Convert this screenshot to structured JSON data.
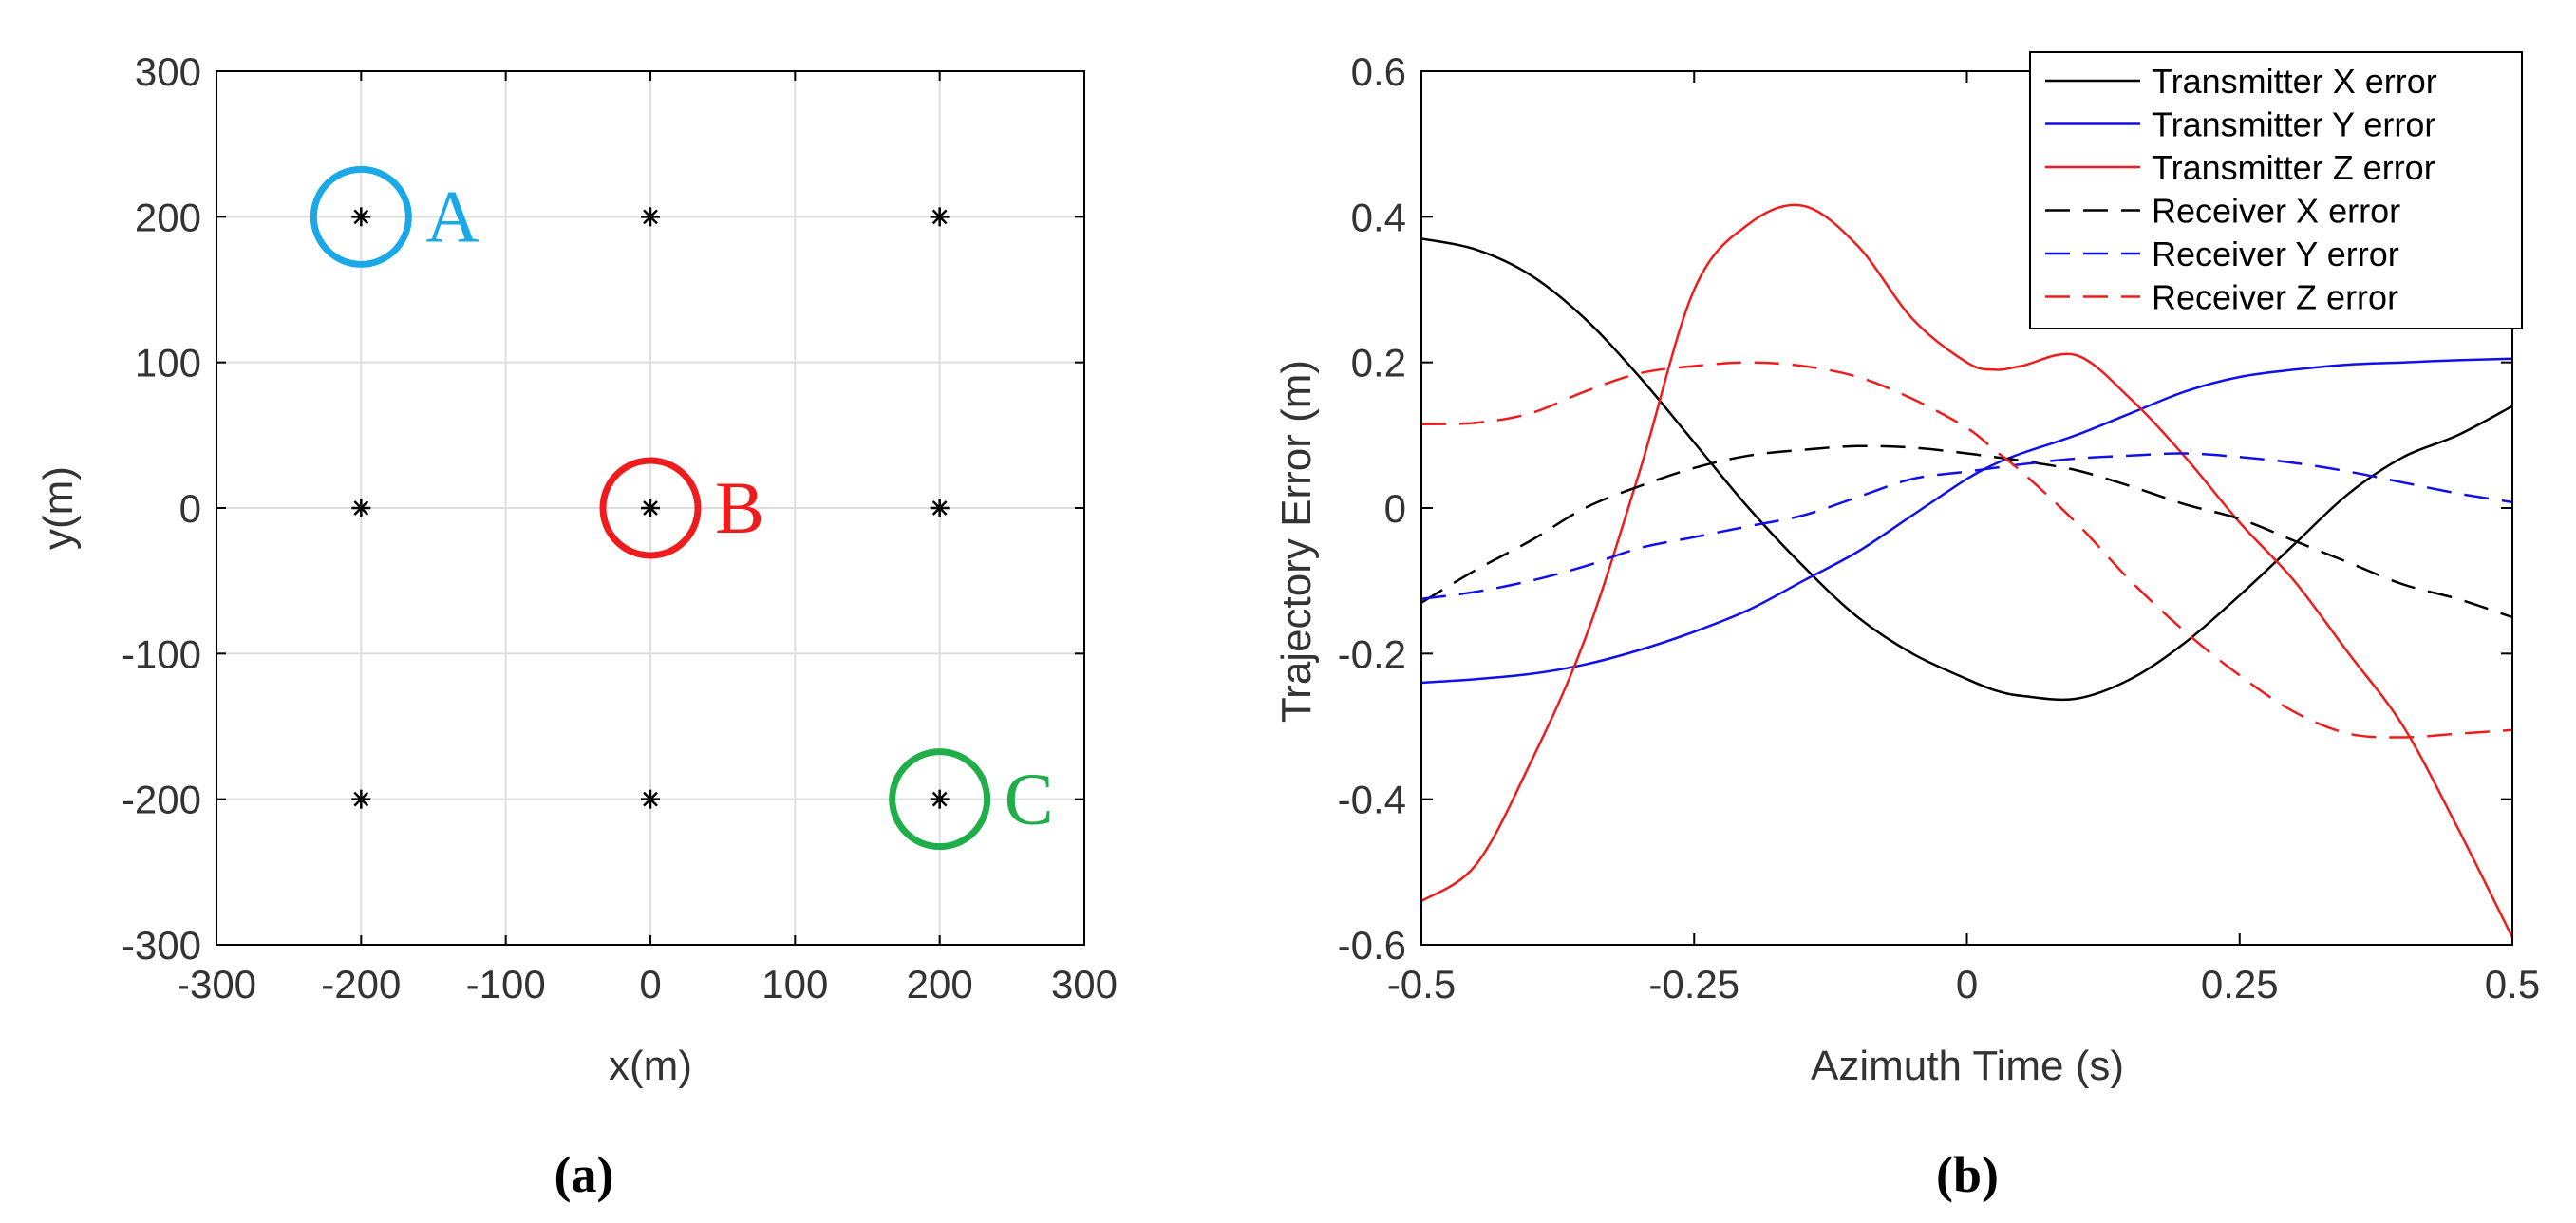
{
  "chart_data": [
    {
      "type": "scatter",
      "panel_label": "(a)",
      "xlabel": "x(m)",
      "ylabel": "y(m)",
      "xlim": [
        -300,
        300
      ],
      "ylim": [
        -300,
        300
      ],
      "xticks": [
        -300,
        -200,
        -100,
        0,
        100,
        200,
        300
      ],
      "yticks": [
        -300,
        -200,
        -100,
        0,
        100,
        200,
        300
      ],
      "grid": true,
      "points": [
        {
          "x": -200,
          "y": 200
        },
        {
          "x": 0,
          "y": 200
        },
        {
          "x": 200,
          "y": 200
        },
        {
          "x": -200,
          "y": 0
        },
        {
          "x": 0,
          "y": 0
        },
        {
          "x": 200,
          "y": 0
        },
        {
          "x": -200,
          "y": -200
        },
        {
          "x": 0,
          "y": -200
        },
        {
          "x": 200,
          "y": -200
        }
      ],
      "marker_color": "#000000",
      "highlights": [
        {
          "label": "A",
          "x": -200,
          "y": 200,
          "color": "#1aa9e6"
        },
        {
          "label": "B",
          "x": 0,
          "y": 0,
          "color": "#ee1c1c"
        },
        {
          "label": "C",
          "x": 200,
          "y": -200,
          "color": "#1fae4a"
        }
      ]
    },
    {
      "type": "line",
      "panel_label": "(b)",
      "xlabel": "Azimuth Time (s)",
      "ylabel": "Trajectory Error (m)",
      "xlim": [
        -0.5,
        0.5
      ],
      "ylim": [
        -0.6,
        0.6
      ],
      "xticks": [
        -0.5,
        -0.25,
        0,
        0.25,
        0.5
      ],
      "xtick_labels": [
        "-0.5",
        "-0.25",
        "0",
        "0.25",
        "0.5"
      ],
      "yticks": [
        -0.6,
        -0.4,
        -0.2,
        0,
        0.2,
        0.4,
        0.6
      ],
      "ytick_labels": [
        "-0.6",
        "-0.4",
        "-0.2",
        "0",
        "0.2",
        "0.4",
        "0.6"
      ],
      "grid": false,
      "legend_position": "top-right",
      "x": [
        -0.5,
        -0.45,
        -0.4,
        -0.35,
        -0.3,
        -0.25,
        -0.2,
        -0.15,
        -0.1,
        -0.05,
        0,
        0.025,
        0.05,
        0.1,
        0.15,
        0.2,
        0.25,
        0.3,
        0.35,
        0.4,
        0.45,
        0.5
      ],
      "series": [
        {
          "name": "Transmitter X error",
          "color": "#000000",
          "dash": "solid",
          "values": [
            0.37,
            0.355,
            0.32,
            0.26,
            0.18,
            0.09,
            0.0,
            -0.08,
            -0.15,
            -0.2,
            -0.235,
            -0.25,
            -0.258,
            -0.262,
            -0.235,
            -0.185,
            -0.12,
            -0.05,
            0.02,
            0.07,
            0.1,
            0.14
          ]
        },
        {
          "name": "Transmitter Y error",
          "color": "#1010ee",
          "dash": "solid",
          "values": [
            -0.24,
            -0.235,
            -0.228,
            -0.215,
            -0.195,
            -0.17,
            -0.14,
            -0.1,
            -0.06,
            -0.01,
            0.04,
            0.06,
            0.075,
            0.1,
            0.13,
            0.16,
            0.18,
            0.19,
            0.197,
            0.2,
            0.203,
            0.205
          ]
        },
        {
          "name": "Transmitter Z error",
          "color": "#ee1c1c",
          "dash": "solid",
          "values": [
            -0.54,
            -0.49,
            -0.35,
            -0.18,
            0.05,
            0.3,
            0.39,
            0.415,
            0.36,
            0.26,
            0.2,
            0.19,
            0.195,
            0.21,
            0.15,
            0.07,
            -0.02,
            -0.1,
            -0.2,
            -0.3,
            -0.44,
            -0.59
          ]
        },
        {
          "name": "Receiver X error",
          "color": "#000000",
          "dash": "dashed",
          "values": [
            -0.13,
            -0.085,
            -0.045,
            0.0,
            0.03,
            0.055,
            0.072,
            0.08,
            0.085,
            0.083,
            0.075,
            0.07,
            0.065,
            0.052,
            0.03,
            0.005,
            -0.015,
            -0.045,
            -0.075,
            -0.105,
            -0.125,
            -0.15
          ]
        },
        {
          "name": "Receiver Y error",
          "color": "#1010ee",
          "dash": "dashed",
          "values": [
            -0.125,
            -0.115,
            -0.1,
            -0.08,
            -0.055,
            -0.04,
            -0.025,
            -0.01,
            0.015,
            0.04,
            0.05,
            0.055,
            0.06,
            0.068,
            0.072,
            0.075,
            0.07,
            0.062,
            0.05,
            0.035,
            0.02,
            0.008
          ]
        },
        {
          "name": "Receiver Z error",
          "color": "#ee1c1c",
          "dash": "dashed",
          "values": [
            0.115,
            0.117,
            0.13,
            0.16,
            0.185,
            0.195,
            0.2,
            0.195,
            0.18,
            0.15,
            0.11,
            0.08,
            0.05,
            -0.02,
            -0.1,
            -0.17,
            -0.23,
            -0.28,
            -0.31,
            -0.315,
            -0.31,
            -0.305
          ]
        }
      ]
    }
  ]
}
